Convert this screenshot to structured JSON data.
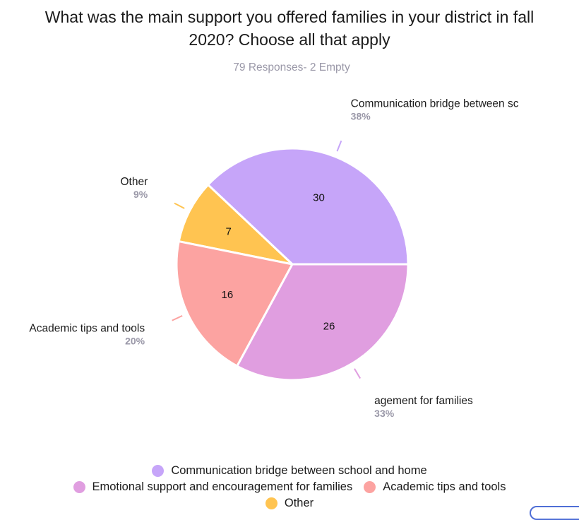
{
  "chart_data": {
    "type": "pie",
    "title": "What was the main support you offered families in your district in fall 2020? Choose all that apply",
    "subtitle": "79 Responses- 2 Empty",
    "slices": [
      {
        "label": "Communication bridge between school and home",
        "callout_label": "Communication bridge between sc",
        "value": 30,
        "percent": "38%",
        "color": "#c6a5f9"
      },
      {
        "label": "Other",
        "callout_label": "Other",
        "value": 7,
        "percent": "9%",
        "color": "#ffc451"
      },
      {
        "label": "Academic tips and tools",
        "callout_label": "Academic tips and tools",
        "value": 16,
        "percent": "20%",
        "color": "#fca3a1"
      },
      {
        "label": "Emotional support and encouragement for families",
        "callout_label": "agement for families",
        "value": 26,
        "percent": "33%",
        "color": "#e09ee0"
      }
    ],
    "start_angle_deg": 0,
    "legend_position": "bottom",
    "legend": [
      {
        "label": "Communication bridge between school and home",
        "color": "#c6a5f9"
      },
      {
        "label": "Emotional support and encouragement for families",
        "color": "#e09ee0"
      },
      {
        "label": "Academic tips and tools",
        "color": "#fca3a1"
      },
      {
        "label": "Other",
        "color": "#ffc451"
      }
    ]
  }
}
